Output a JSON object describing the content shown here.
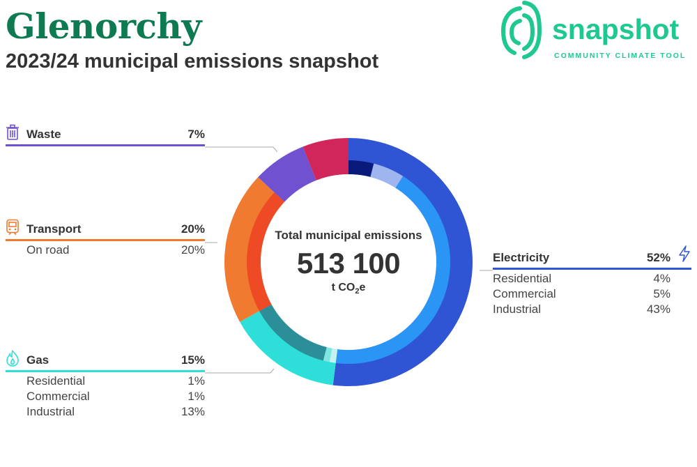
{
  "title": "Glenorchy",
  "subtitle": "2023/24 municipal emissions snapshot",
  "logo": {
    "wordmark": "snapshot",
    "tagline": "COMMUNITY CLIMATE TOOL",
    "color": "#1fc98e",
    "icon": "fingerprint-swirl-icon"
  },
  "center": {
    "caption": "Total municipal emissions",
    "value": "513 100",
    "unit_prefix": "t CO",
    "unit_sub": "2",
    "unit_suffix": "e"
  },
  "chart_data": {
    "type": "donut",
    "total": 513100,
    "unit": "t CO2e",
    "categories": [
      {
        "name": "Electricity",
        "percent": "52%",
        "value": 52,
        "color": "#2f55d4",
        "icon": "lightning-icon",
        "subsectors": [
          {
            "name": "Residential",
            "percent": "4%",
            "value": 4,
            "color": "#0a1a7a"
          },
          {
            "name": "Commercial",
            "percent": "5%",
            "value": 5,
            "color": "#9fb5f0"
          },
          {
            "name": "Industrial",
            "percent": "43%",
            "value": 43,
            "color": "#2a95f5"
          }
        ]
      },
      {
        "name": "Gas",
        "percent": "15%",
        "value": 15,
        "color": "#2ddfd8",
        "icon": "flame-icon",
        "subsectors": [
          {
            "name": "Residential",
            "percent": "1%",
            "value": 1,
            "color": "#c4f2ef"
          },
          {
            "name": "Commercial",
            "percent": "1%",
            "value": 1,
            "color": "#7fe6e1"
          },
          {
            "name": "Industrial",
            "percent": "13%",
            "value": 13,
            "color": "#2b8e99"
          }
        ]
      },
      {
        "name": "Transport",
        "percent": "20%",
        "value": 20,
        "color": "#f07a30",
        "icon": "train-icon",
        "subsectors": [
          {
            "name": "On road",
            "percent": "20%",
            "value": 20,
            "color": "#ef4a26"
          }
        ]
      },
      {
        "name": "Waste",
        "percent": "7%",
        "value": 7,
        "color": "#7052d1",
        "icon": "bin-icon",
        "subsectors": []
      },
      {
        "name": "",
        "percent": "",
        "value": 6,
        "color": "#d0265a",
        "subsectors": []
      }
    ]
  }
}
